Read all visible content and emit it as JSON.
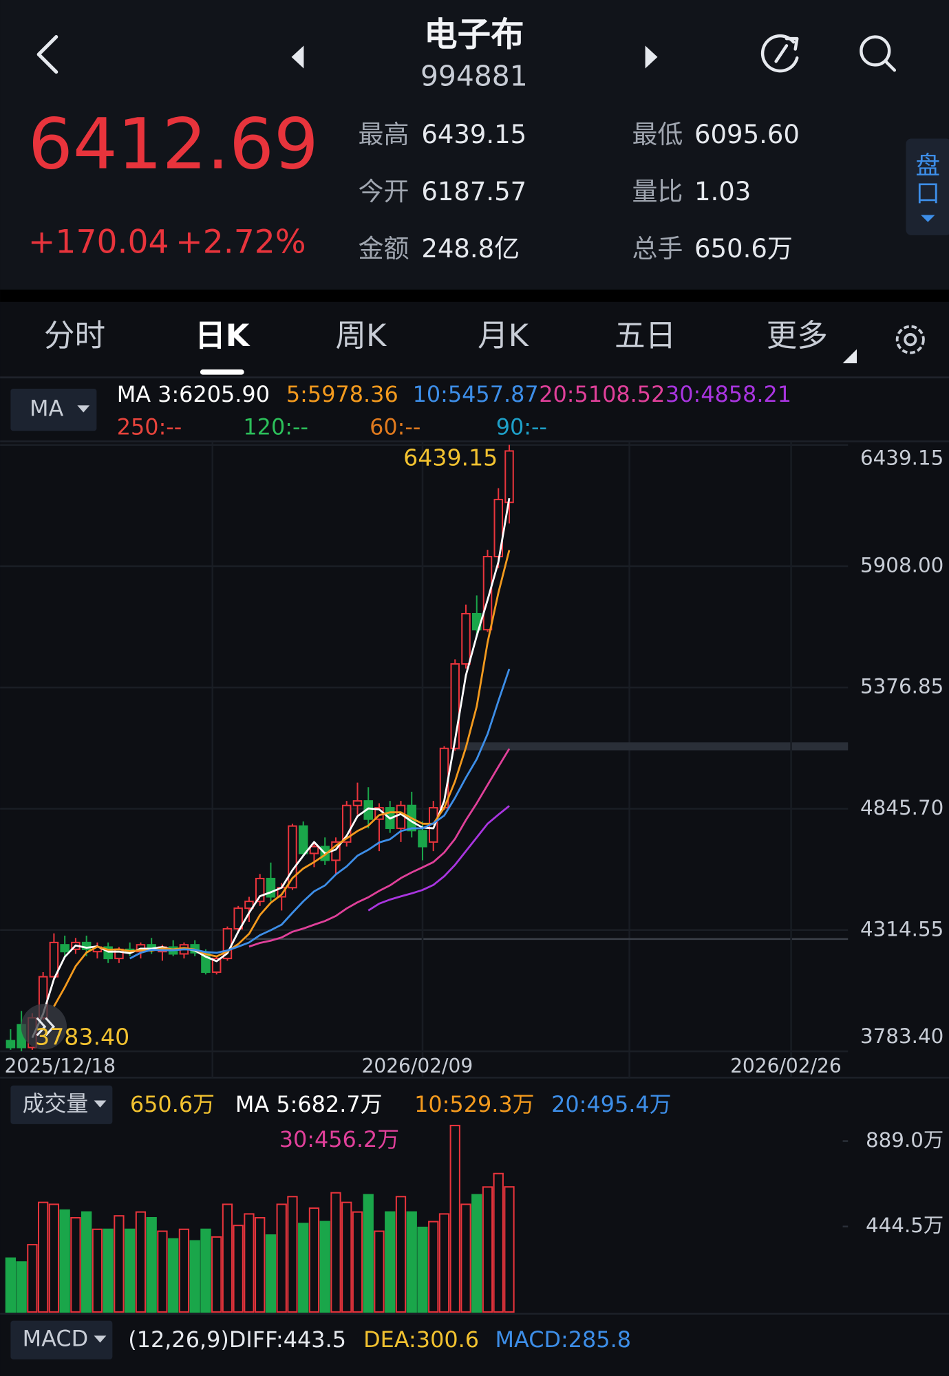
{
  "header": {
    "title": "电子布",
    "code": "994881"
  },
  "quote": {
    "price": "6412.69",
    "change": "+170.04",
    "change_pct": "+2.72%",
    "stats": [
      {
        "label": "最高",
        "value": "6439.15"
      },
      {
        "label": "最低",
        "value": "6095.60"
      },
      {
        "label": "今开",
        "value": "6187.57"
      },
      {
        "label": "量比",
        "value": "1.03"
      },
      {
        "label": "金额",
        "value": "248.8亿"
      },
      {
        "label": "总手",
        "value": "650.6万"
      }
    ],
    "side_button": [
      "盘",
      "口"
    ]
  },
  "tabs": {
    "items": [
      "分时",
      "日K",
      "周K",
      "月K",
      "五日",
      "更多"
    ],
    "active": 1
  },
  "ma_panel": {
    "selector": "MA",
    "legend": [
      {
        "text": "MA 3:6205.90",
        "color": "#ffffff"
      },
      {
        "text": "5:5978.36",
        "color": "#f39a1e"
      },
      {
        "text": "10:5457.87",
        "color": "#3d8ee8"
      },
      {
        "text": "20:5108.52",
        "color": "#e0409a"
      },
      {
        "text": "30:4858.21",
        "color": "#a935e0"
      },
      {
        "text": "250:--",
        "color": "#e8443c"
      },
      {
        "text": "120:--",
        "color": "#2cbf5a"
      },
      {
        "text": "60:--",
        "color": "#e07a1e"
      },
      {
        "text": "90:--",
        "color": "#1ea0c8"
      }
    ]
  },
  "volume_panel": {
    "selector": "成交量",
    "legend": [
      {
        "text": "650.6万",
        "color": "#f2c230"
      },
      {
        "text": "MA 5:682.7万",
        "color": "#ffffff"
      },
      {
        "text": "10:529.3万",
        "color": "#f39a1e"
      },
      {
        "text": "20:495.4万",
        "color": "#3d8ee8"
      },
      {
        "text": "30:456.2万",
        "color": "#e0409a"
      }
    ]
  },
  "macd_panel": {
    "selector": "MACD",
    "legend": [
      {
        "text": "(12,26,9)DIFF:443.5",
        "color": "#e6e9ee"
      },
      {
        "text": "DEA:300.6",
        "color": "#f2c230"
      },
      {
        "text": "MACD:285.8",
        "color": "#3d8ee8"
      }
    ]
  },
  "chart_data": [
    {
      "type": "candlestick",
      "categories": [
        "2025/12/18",
        null,
        null,
        null,
        null,
        null,
        null,
        null,
        null,
        null,
        null,
        null,
        null,
        null,
        null,
        null,
        null,
        null,
        null,
        null,
        null,
        null,
        null,
        null,
        null,
        null,
        null,
        null,
        null,
        null,
        null,
        null,
        null,
        null,
        null,
        null,
        null,
        null,
        "2026/02/09",
        null,
        null,
        null,
        null,
        null,
        null,
        null,
        null,
        null,
        null,
        null,
        null,
        null,
        null,
        null,
        null,
        null,
        null,
        null,
        null,
        null,
        null,
        null,
        null,
        null,
        null,
        null,
        null,
        null,
        null,
        null,
        null,
        null,
        "2026/02/26",
        null,
        null,
        null,
        null,
        null
      ],
      "open": [
        3830,
        3900,
        3800,
        3930,
        4110,
        4250,
        4230,
        4260,
        4220,
        4240,
        4190,
        4230,
        4220,
        4250,
        4220,
        4240,
        4210,
        4250,
        4210,
        4130,
        4190,
        4320,
        4410,
        4440,
        4540,
        4460,
        4500,
        4770,
        4650,
        4680,
        4620,
        4700,
        4860,
        4880,
        4800,
        4850,
        4760,
        4860,
        4750,
        4700,
        4850,
        5110,
        5480,
        5700,
        5630,
        5950,
        6187.57,
        null,
        null,
        null,
        null,
        null,
        null,
        null,
        null,
        null,
        null,
        null,
        null,
        null,
        null,
        null,
        null,
        null,
        null,
        null,
        null,
        null,
        null,
        null,
        null,
        null,
        null,
        null,
        null,
        null,
        null,
        null
      ],
      "high": [
        3880,
        3960,
        3950,
        4130,
        4300,
        4290,
        4280,
        4290,
        4260,
        4260,
        4240,
        4260,
        4260,
        4280,
        4250,
        4270,
        4260,
        4270,
        4230,
        4200,
        4330,
        4420,
        4460,
        4560,
        4610,
        4520,
        4780,
        4790,
        4700,
        4720,
        4720,
        4880,
        4960,
        4940,
        4870,
        4880,
        4880,
        4920,
        4790,
        4880,
        5120,
        5500,
        5740,
        5780,
        5980,
        6250,
        6439.15,
        null,
        null,
        null,
        null,
        null,
        null,
        null,
        null,
        null,
        null,
        null,
        null,
        null,
        null,
        null,
        null,
        null,
        null,
        null,
        null,
        null,
        null,
        null,
        null,
        null,
        null,
        null,
        null,
        null,
        null,
        null
      ],
      "low": [
        3790,
        3783.4,
        3790,
        3920,
        4100,
        4200,
        4210,
        4200,
        4190,
        4170,
        4170,
        4200,
        4190,
        4210,
        4180,
        4200,
        4190,
        4200,
        4120,
        4120,
        4180,
        4300,
        4350,
        4420,
        4440,
        4400,
        4490,
        4640,
        4590,
        4600,
        4560,
        4680,
        4820,
        4760,
        4660,
        4740,
        4700,
        4720,
        4620,
        4660,
        4840,
        5100,
        5460,
        5600,
        5620,
        5900,
        6095.6,
        null,
        null,
        null,
        null,
        null,
        null,
        null,
        null,
        null,
        null,
        null,
        null,
        null,
        null,
        null,
        null,
        null,
        null,
        null,
        null,
        null,
        null,
        null,
        null,
        null,
        null,
        null,
        null,
        null,
        null,
        null
      ],
      "close": [
        3800,
        3800,
        3930,
        4110,
        4260,
        4220,
        4260,
        4230,
        4240,
        4190,
        4230,
        4220,
        4250,
        4230,
        4240,
        4210,
        4250,
        4215,
        4130,
        4190,
        4320,
        4410,
        4440,
        4540,
        4460,
        4500,
        4770,
        4650,
        4680,
        4620,
        4700,
        4860,
        4880,
        4800,
        4850,
        4760,
        4860,
        4750,
        4680,
        4850,
        5110,
        5480,
        5700,
        5630,
        5950,
        6200,
        6412.69,
        null,
        null,
        null,
        null,
        null,
        null,
        null,
        null,
        null,
        null,
        null,
        null,
        null,
        null,
        null,
        null,
        null,
        null,
        null,
        null,
        null,
        null,
        null,
        null,
        null,
        null,
        null,
        null,
        null,
        null,
        null
      ],
      "up_color": "#e8343c",
      "down_color": "#1aa64a",
      "lines": [
        {
          "color": "#ffffff",
          "values": [
            null,
            null,
            3843,
            3947,
            4100,
            4197,
            4247,
            4237,
            4243,
            4220,
            4220,
            4213,
            4233,
            4233,
            4240,
            4227,
            4233,
            4225,
            4198,
            4178,
            4213,
            4307,
            4390,
            4463,
            4480,
            4500,
            4577,
            4640,
            4700,
            4650,
            4667,
            4727,
            4813,
            4847,
            4843,
            4803,
            4823,
            4790,
            4763,
            4760,
            4880,
            5147,
            5430,
            5603,
            5760,
            5927,
            6205.9,
            null,
            null,
            null,
            null,
            null,
            null,
            null,
            null,
            null,
            null,
            null,
            null,
            null,
            null,
            null,
            null,
            null,
            null,
            null,
            null,
            null,
            null,
            null,
            null,
            null,
            null,
            null,
            null,
            null,
            null,
            null
          ]
        },
        {
          "color": "#f39a1e",
          "values": [
            null,
            null,
            null,
            null,
            3980,
            4064,
            4156,
            4216,
            4242,
            4228,
            4230,
            4222,
            4226,
            4224,
            4234,
            4230,
            4236,
            4229,
            4209,
            4199,
            4221,
            4253,
            4298,
            4380,
            4434,
            4470,
            4542,
            4584,
            4612,
            4644,
            4684,
            4716,
            4748,
            4772,
            4818,
            4830,
            4830,
            4804,
            4780,
            4780,
            4850,
            4966,
            5114,
            5294,
            5574,
            5792,
            5978.36,
            null,
            null,
            null,
            null,
            null,
            null,
            null,
            null,
            null,
            null,
            null,
            null,
            null,
            null,
            null,
            null,
            null,
            null,
            null,
            null,
            null,
            null,
            null,
            null,
            null,
            null,
            null,
            null,
            null,
            null,
            null
          ]
        },
        {
          "color": "#3d8ee8",
          "values": [
            null,
            null,
            null,
            null,
            null,
            null,
            null,
            null,
            null,
            null,
            null,
            4190,
            4215,
            4228,
            4226,
            4226,
            4230,
            4228,
            4218,
            4215,
            4225,
            4242,
            4260,
            4292,
            4314,
            4338,
            4390,
            4440,
            4484,
            4510,
            4558,
            4593,
            4640,
            4666,
            4698,
            4712,
            4748,
            4760,
            4760,
            4782,
            4816,
            4894,
            4982,
            5063,
            5173,
            5318,
            5457.87,
            null,
            null,
            null,
            null,
            null,
            null,
            null,
            null,
            null,
            null,
            null,
            null,
            null,
            null,
            null,
            null,
            null,
            null,
            null,
            null,
            null,
            null,
            null,
            null,
            null,
            null,
            null,
            null,
            null,
            null,
            null
          ]
        },
        {
          "color": "#e0409a",
          "values": [
            null,
            null,
            null,
            null,
            null,
            null,
            null,
            null,
            null,
            null,
            null,
            null,
            null,
            null,
            null,
            null,
            null,
            null,
            null,
            null,
            null,
            null,
            4242,
            4258,
            4268,
            4282,
            4307,
            4321,
            4338,
            4354,
            4376,
            4409,
            4436,
            4458,
            4486,
            4510,
            4542,
            4567,
            4589,
            4612,
            4654,
            4714,
            4796,
            4870,
            4950,
            5030,
            5108.52,
            null,
            null,
            null,
            null,
            null,
            null,
            null,
            null,
            null,
            null,
            null,
            null,
            null,
            null,
            null,
            null,
            null,
            null,
            null,
            null,
            null,
            null,
            null,
            null,
            null,
            null,
            null,
            null,
            null,
            null,
            null
          ]
        },
        {
          "color": "#a935e0",
          "values": [
            null,
            null,
            null,
            null,
            null,
            null,
            null,
            null,
            null,
            null,
            null,
            null,
            null,
            null,
            null,
            null,
            null,
            null,
            null,
            null,
            null,
            null,
            null,
            null,
            null,
            null,
            null,
            null,
            null,
            null,
            null,
            null,
            null,
            4400,
            4430,
            4448,
            4462,
            4475,
            4490,
            4512,
            4550,
            4600,
            4660,
            4720,
            4780,
            4820,
            4858.21,
            null,
            null,
            null,
            null,
            null,
            null,
            null,
            null,
            null,
            null,
            null,
            null,
            null,
            null,
            null,
            null,
            null,
            null,
            null,
            null,
            null,
            null,
            null,
            null,
            null,
            null,
            null,
            null,
            null,
            null,
            null
          ]
        }
      ],
      "high_marker": 6439.15,
      "low_marker": {
        "value": 3783.4,
        "label": "3783.40"
      },
      "ylim": [
        3783.4,
        6439.15
      ],
      "yticks": [
        6439.15,
        {
          "value": 5908,
          "label": "5908.00"
        },
        5376.85,
        {
          "value": 4845.7,
          "label": "4845.70"
        },
        4314.55,
        {
          "value": 3783.4,
          "label": "3783.40"
        }
      ],
      "grid": true
    },
    {
      "type": "bar",
      "values": [
        280,
        260,
        350,
        570,
        560,
        530,
        490,
        520,
        430,
        430,
        500,
        430,
        520,
        490,
        420,
        380,
        430,
        370,
        430,
        390,
        560,
        450,
        510,
        490,
        400,
        560,
        600,
        460,
        540,
        470,
        620,
        570,
        520,
        610,
        420,
        520,
        600,
        520,
        440,
        470,
        510,
        970,
        560,
        610,
        650,
        720,
        650.6,
        null,
        null,
        null,
        null,
        null,
        null,
        null,
        null,
        null,
        null,
        null,
        null,
        null,
        null,
        null,
        null,
        null,
        null,
        null,
        null,
        null,
        null,
        null,
        null,
        null,
        null,
        null,
        null,
        null,
        null,
        null
      ],
      "ylim": [
        0,
        1000
      ],
      "yticks": [
        {
          "value": 889,
          "label": "889.0万"
        },
        {
          "value": 444.5,
          "label": "444.5万"
        }
      ]
    }
  ]
}
